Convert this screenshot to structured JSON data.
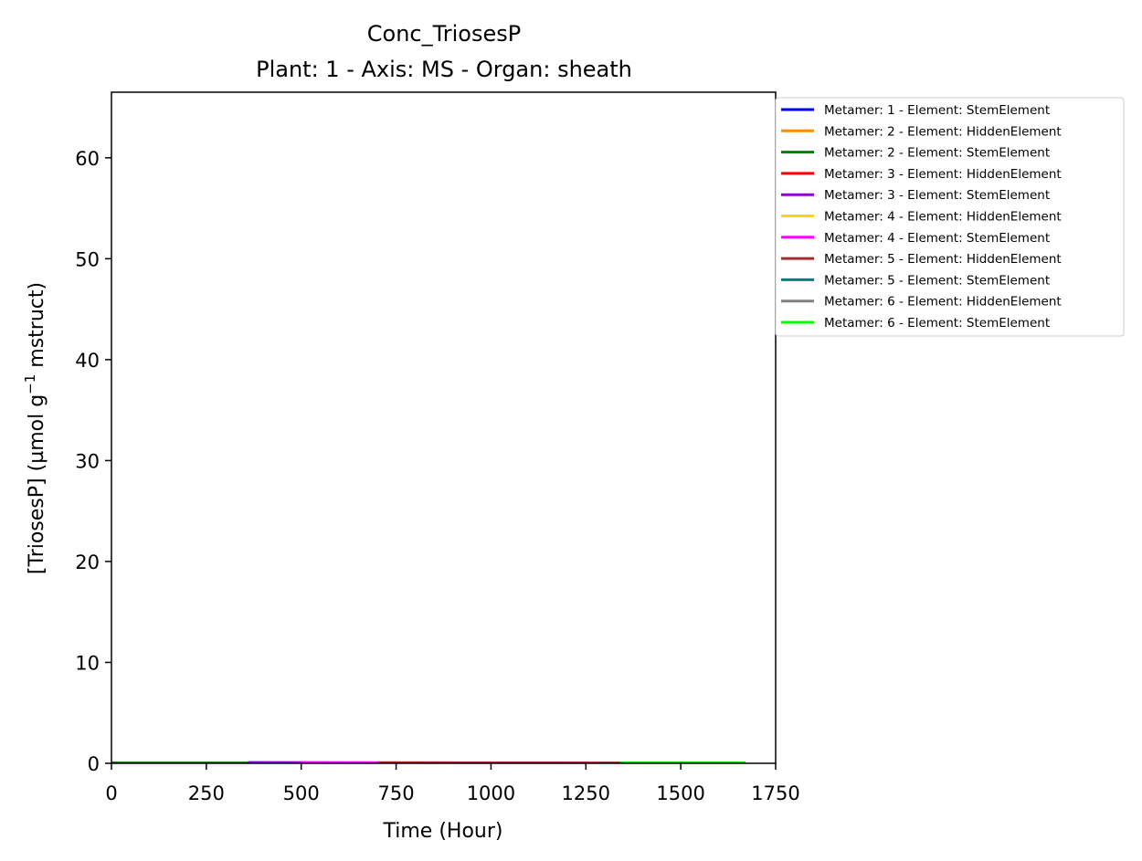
{
  "chart_data": {
    "type": "line",
    "title": "Conc_TriosesP",
    "subtitle": "Plant: 1 - Axis: MS - Organ: sheath",
    "xlabel": "Time (Hour)",
    "ylabel_main": "[TriosesP] (µmol g",
    "ylabel_exp": "−1",
    "ylabel_tail": " mstruct)",
    "xlim": [
      0,
      1750
    ],
    "ylim": [
      0,
      66.5
    ],
    "x_ticks": [
      0,
      250,
      500,
      750,
      1000,
      1250,
      1500,
      1750
    ],
    "y_ticks": [
      0,
      10,
      20,
      30,
      40,
      50,
      60
    ],
    "legend_placement": "outside-right-top",
    "grid": false,
    "series": [
      {
        "name": "Metamer: 1 - Element: StemElement",
        "color": "#0000ff",
        "x": [
          0,
          1650
        ],
        "y": [
          0.05,
          0.05
        ]
      },
      {
        "name": "Metamer: 2 - Element: HiddenElement",
        "color": "#ff8c00",
        "x": [
          0,
          1650
        ],
        "y": [
          0.06,
          0.06
        ]
      },
      {
        "name": "Metamer: 2 - Element: StemElement",
        "color": "#008000",
        "x": [
          0,
          1670
        ],
        "y": [
          0.08,
          0.08
        ]
      },
      {
        "name": "Metamer: 3 - Element: HiddenElement",
        "color": "#ff0000",
        "x": [
          360,
          1340
        ],
        "y": [
          0.1,
          0.05
        ]
      },
      {
        "name": "Metamer: 3 - Element: StemElement",
        "color": "#9400d3",
        "x": [
          360,
          900
        ],
        "y": [
          0.12,
          0.1
        ]
      },
      {
        "name": "Metamer: 4 - Element: HiddenElement",
        "color": "#ffd700",
        "x": [
          500,
          1340
        ],
        "y": [
          0.08,
          0.05
        ]
      },
      {
        "name": "Metamer: 4 - Element: StemElement",
        "color": "#ff00ff",
        "x": [
          500,
          1340
        ],
        "y": [
          0.1,
          0.06
        ]
      },
      {
        "name": "Metamer: 5 - Element: HiddenElement",
        "color": "#a52a2a",
        "x": [
          700,
          1340
        ],
        "y": [
          0.09,
          0.05
        ]
      },
      {
        "name": "Metamer: 5 - Element: StemElement",
        "color": "#008080",
        "x": [
          1340,
          1590
        ],
        "y": [
          0.06,
          0.06
        ]
      },
      {
        "name": "Metamer: 6 - Element: HiddenElement",
        "color": "#808080",
        "x": [
          1340,
          1590
        ],
        "y": [
          0.05,
          0.05
        ]
      },
      {
        "name": "Metamer: 6 - Element: StemElement",
        "color": "#00ff00",
        "x": [
          1340,
          1670
        ],
        "y": [
          0.07,
          0.07
        ]
      }
    ]
  }
}
